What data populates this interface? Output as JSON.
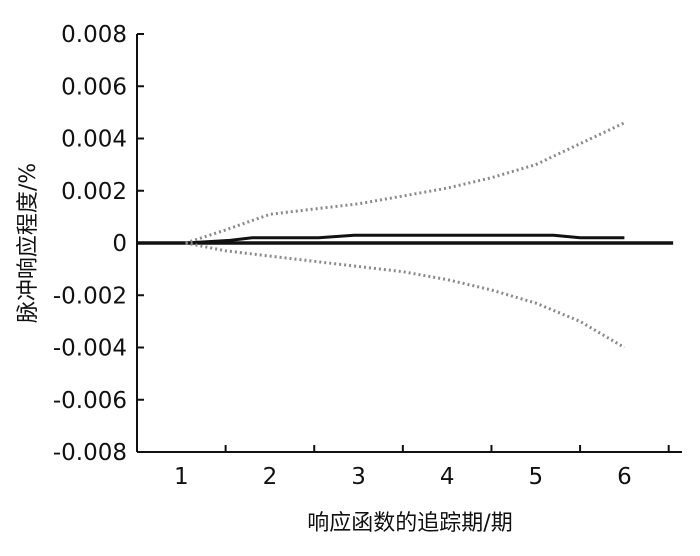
{
  "chart_data": {
    "type": "line",
    "title": "",
    "xlabel": "响应函数的追踪期/期",
    "ylabel": "脉冲响应程度/%",
    "x": [
      1,
      2,
      3,
      4,
      5,
      6
    ],
    "xlim": [
      0.5,
      6.65
    ],
    "ylim": [
      -0.008,
      0.008
    ],
    "yticks": [
      0.008,
      0.006,
      0.004,
      0.002,
      0,
      -0.002,
      -0.004,
      -0.006,
      -0.008
    ],
    "ytick_labels": [
      "0.008",
      "0.006",
      "0.004",
      "0.002",
      "0",
      "-0.002",
      "-0.004",
      "-0.006",
      "-0.008"
    ],
    "xtick_labels": [
      "1",
      "2",
      "3",
      "4",
      "5",
      "6"
    ],
    "grid": false,
    "series": [
      {
        "style": "solid",
        "color": "#111111",
        "points": [
          [
            0.5,
            0
          ],
          [
            1.05,
            0
          ],
          [
            1.55,
            0.0001
          ],
          [
            1.8,
            0.0002
          ],
          [
            2.2,
            0.0002
          ],
          [
            2.55,
            0.0002
          ],
          [
            2.95,
            0.0003
          ],
          [
            4.5,
            0.0003
          ],
          [
            5.2,
            0.0003
          ],
          [
            5.5,
            0.0002
          ],
          [
            6,
            0.0002
          ]
        ]
      },
      {
        "style": "dotted",
        "color": "#8a8a8a",
        "points": [
          [
            1.05,
            0
          ],
          [
            1.5,
            0.0005
          ],
          [
            2,
            0.0011
          ],
          [
            2.5,
            0.0013
          ],
          [
            3,
            0.0015
          ],
          [
            3.5,
            0.0018
          ],
          [
            4,
            0.0021
          ],
          [
            4.5,
            0.0025
          ],
          [
            5,
            0.003
          ],
          [
            5.5,
            0.0038
          ],
          [
            6,
            0.0046
          ]
        ]
      },
      {
        "style": "dotted",
        "color": "#8a8a8a",
        "points": [
          [
            1.05,
            0
          ],
          [
            1.5,
            -0.0003
          ],
          [
            2,
            -0.0005
          ],
          [
            2.5,
            -0.0007
          ],
          [
            3,
            -0.0009
          ],
          [
            3.5,
            -0.0011
          ],
          [
            4,
            -0.0014
          ],
          [
            4.5,
            -0.0018
          ],
          [
            5,
            -0.0023
          ],
          [
            5.5,
            -0.003
          ],
          [
            6,
            -0.004
          ]
        ]
      }
    ]
  }
}
